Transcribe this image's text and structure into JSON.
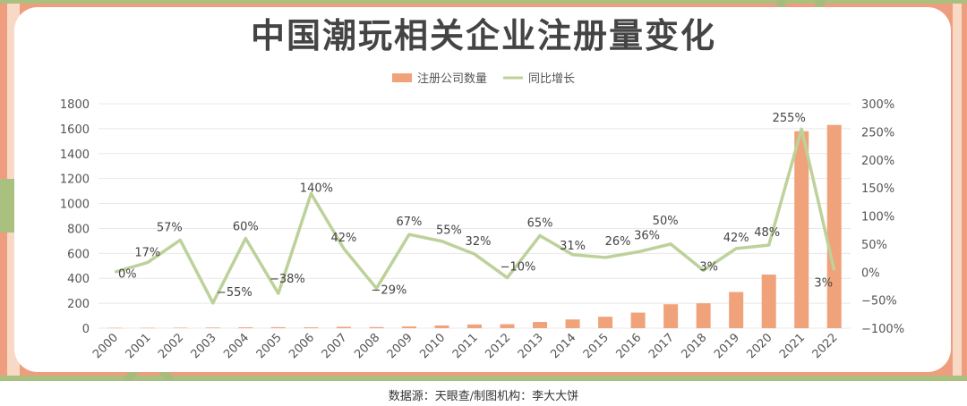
{
  "title": "中国潮玩相关企业注册量变化",
  "footer": "数据源：天眼查/制图机构：李大大饼",
  "colors": {
    "bar": "#f0a27a",
    "line": "#bdd19a",
    "text": "#555555",
    "axis": "#e8e8e8"
  },
  "chart_data": {
    "type": "bar",
    "title": "中国潮玩相关企业注册量变化",
    "legend": [
      "注册公司数量",
      "同比增长"
    ],
    "legend_position": "top-center",
    "categories": [
      "2000",
      "2001",
      "2002",
      "2003",
      "2004",
      "2005",
      "2006",
      "2007",
      "2008",
      "2009",
      "2010",
      "2011",
      "2012",
      "2013",
      "2014",
      "2015",
      "2016",
      "2017",
      "2018",
      "2019",
      "2020",
      "2021",
      "2022"
    ],
    "series": [
      {
        "name": "注册公司数量",
        "type": "bar",
        "axis": "left",
        "values": [
          3,
          3,
          4,
          5,
          7,
          8,
          7,
          11,
          9,
          14,
          22,
          30,
          32,
          50,
          70,
          92,
          125,
          192,
          200,
          290,
          430,
          1580,
          1630
        ]
      },
      {
        "name": "同比增长",
        "type": "line",
        "axis": "right",
        "values": [
          0,
          17,
          57,
          -55,
          60,
          -38,
          140,
          42,
          -29,
          67,
          55,
          32,
          -10,
          65,
          31,
          26,
          36,
          50,
          3,
          42,
          48,
          255,
          3
        ],
        "labels": [
          "0%",
          "17%",
          "57%",
          "−55%",
          "60%",
          "−38%",
          "140%",
          "42%",
          "−29%",
          "67%",
          "55%",
          "32%",
          "−10%",
          "65%",
          "31%",
          "26%",
          "36%",
          "50%",
          "3%",
          "42%",
          "48%",
          "255%",
          "3%"
        ]
      }
    ],
    "y_left": {
      "min": 0,
      "max": 1800,
      "step": 200,
      "ticks": [
        "0",
        "200",
        "400",
        "600",
        "800",
        "1000",
        "1200",
        "1400",
        "1600",
        "1800"
      ]
    },
    "y_right": {
      "min": -100,
      "max": 300,
      "step": 50,
      "ticks": [
        "−100%",
        "−50%",
        "0%",
        "50%",
        "100%",
        "150%",
        "200%",
        "250%",
        "300%"
      ]
    },
    "grid": true
  }
}
